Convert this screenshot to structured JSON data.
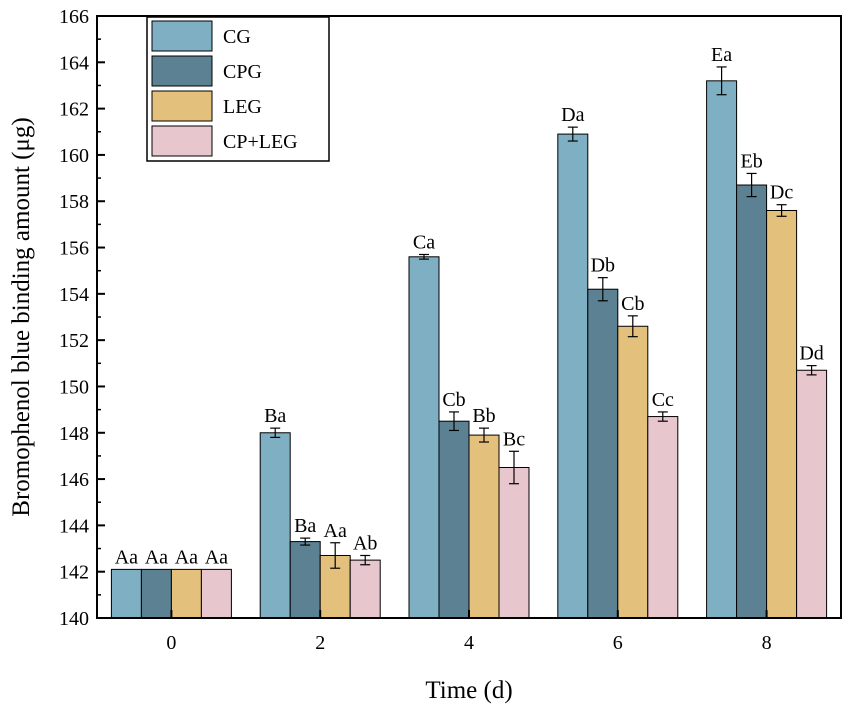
{
  "chart_data": {
    "type": "bar",
    "title": "",
    "xlabel": "Time (d)",
    "ylabel": "Bromophenol blue binding amount (μg)",
    "ylim": [
      140,
      166
    ],
    "yticks": [
      140,
      142,
      144,
      146,
      148,
      150,
      152,
      154,
      156,
      158,
      160,
      162,
      164,
      166
    ],
    "categories": [
      "0",
      "2",
      "4",
      "6",
      "8"
    ],
    "legend_position": "top-left",
    "series": [
      {
        "name": "CG",
        "color": "#7fafc2",
        "values": [
          142.1,
          148.0,
          155.6,
          160.9,
          163.2
        ],
        "errors": [
          0.0,
          0.2,
          0.1,
          0.3,
          0.6
        ],
        "labels": [
          "Aa",
          "Ba",
          "Ca",
          "Da",
          "Ea"
        ]
      },
      {
        "name": "CPG",
        "color": "#5b8193",
        "values": [
          142.1,
          143.3,
          148.5,
          154.2,
          158.7
        ],
        "errors": [
          0.0,
          0.15,
          0.4,
          0.5,
          0.5
        ],
        "labels": [
          "Aa",
          "Ba",
          "Cb",
          "Db",
          "Eb"
        ]
      },
      {
        "name": "LEG",
        "color": "#e3c17d",
        "values": [
          142.1,
          142.7,
          147.9,
          152.6,
          157.6
        ],
        "errors": [
          0.0,
          0.55,
          0.3,
          0.45,
          0.25
        ],
        "labels": [
          "Aa",
          "Aa",
          "Bb",
          "Cb",
          "Dc"
        ]
      },
      {
        "name": "CP+LEG",
        "color": "#e8c6ce",
        "values": [
          142.1,
          142.5,
          146.5,
          148.7,
          150.7
        ],
        "errors": [
          0.0,
          0.2,
          0.7,
          0.2,
          0.2
        ],
        "labels": [
          "Aa",
          "Ab",
          "Bc",
          "Cc",
          "Dd"
        ]
      }
    ]
  }
}
